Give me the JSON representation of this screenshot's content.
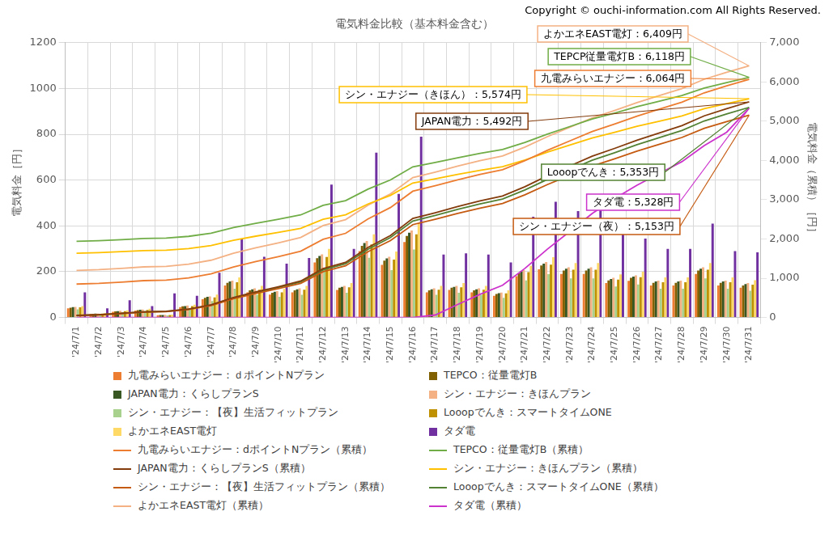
{
  "chart_data": {
    "type": "bar",
    "title": "電気料金比較（基本料金含む）",
    "source": "Copyright © ouchi-information.com All Rights Reserved.",
    "y_label": "電気料金［円］",
    "y2_label": "電気料金（累積）［円］",
    "categories": [
      "'24/7/1",
      "'24/7/2",
      "'24/7/3",
      "'24/7/4",
      "'24/7/5",
      "'24/7/6",
      "'24/7/7",
      "'24/7/8",
      "'24/7/9",
      "'24/7/10",
      "'24/7/11",
      "'24/7/12",
      "'24/7/13",
      "'24/7/14",
      "'24/7/15",
      "'24/7/16",
      "'24/7/17",
      "'24/7/18",
      "'24/7/19",
      "'24/7/20",
      "'24/7/21",
      "'24/7/22",
      "'24/7/23",
      "'24/7/24",
      "'24/7/25",
      "'24/7/26",
      "'24/7/27",
      "'24/7/28",
      "'24/7/29",
      "'24/7/30",
      "'24/7/31"
    ],
    "ylim": [
      0,
      1200
    ],
    "yticks": [
      0,
      200,
      400,
      600,
      800,
      1000,
      1200
    ],
    "y2lim": [
      0,
      7000
    ],
    "y2ticks": [
      0,
      {
        "value": 1000,
        "label": "1,000"
      },
      {
        "value": 2000,
        "label": "2,000"
      },
      {
        "value": 3000,
        "label": "3,000"
      },
      {
        "value": 4000,
        "label": "4,000"
      },
      {
        "value": 5000,
        "label": "5,000"
      },
      {
        "value": 6000,
        "label": "6,000"
      },
      {
        "value": 7000,
        "label": "7,000"
      }
    ],
    "grid": true,
    "legend": "bottom",
    "series": [
      {
        "name": "九電みらいエナジー：ｄポイントNプラン",
        "color": "#ED7D31",
        "values": [
          40,
          15,
          25,
          30,
          10,
          45,
          80,
          140,
          110,
          100,
          110,
          240,
          120,
          290,
          230,
          330,
          110,
          120,
          110,
          95,
          180,
          210,
          190,
          190,
          150,
          160,
          140,
          140,
          190,
          140,
          130
        ]
      },
      {
        "name": "TEPCO：従量電灯B",
        "color": "#806000",
        "values": [
          43,
          16,
          27,
          32,
          11,
          49,
          86,
          151,
          119,
          108,
          119,
          259,
          130,
          313,
          248,
          356,
          119,
          130,
          119,
          103,
          194,
          227,
          205,
          205,
          162,
          173,
          151,
          151,
          205,
          151,
          140
        ]
      },
      {
        "name": "JAPAN電力：くらしプランS",
        "color": "#385723",
        "values": [
          45,
          17,
          28,
          34,
          11,
          50,
          90,
          157,
          123,
          112,
          123,
          269,
          134,
          325,
          258,
          370,
          123,
          134,
          123,
          106,
          202,
          235,
          213,
          213,
          168,
          179,
          157,
          157,
          213,
          157,
          146
        ]
      },
      {
        "name": "シン・エナジー：きほんプラン",
        "color": "#F4B183",
        "values": [
          46,
          17,
          29,
          35,
          12,
          52,
          92,
          161,
          127,
          115,
          127,
          276,
          138,
          334,
          265,
          380,
          127,
          138,
          127,
          109,
          207,
          242,
          219,
          219,
          173,
          184,
          161,
          161,
          219,
          161,
          150
        ]
      },
      {
        "name": "シン・エナジー：【夜】生活フィットプラン",
        "color": "#A9D18E",
        "values": [
          36,
          14,
          23,
          27,
          9,
          41,
          72,
          126,
          99,
          90,
          99,
          216,
          108,
          261,
          207,
          297,
          99,
          108,
          99,
          86,
          162,
          189,
          171,
          171,
          135,
          144,
          126,
          126,
          171,
          126,
          117
        ]
      },
      {
        "name": "Looopでんき：スマートタイムONE",
        "color": "#BF9000",
        "values": [
          44,
          17,
          28,
          33,
          11,
          50,
          88,
          154,
          121,
          110,
          121,
          264,
          132,
          319,
          253,
          363,
          121,
          132,
          121,
          105,
          198,
          231,
          209,
          209,
          165,
          176,
          154,
          154,
          209,
          154,
          143
        ]
      },
      {
        "name": "よかエネEAST電灯",
        "color": "#FFD966",
        "values": [
          50,
          19,
          31,
          38,
          13,
          56,
          100,
          175,
          138,
          125,
          138,
          300,
          150,
          363,
          288,
          413,
          138,
          150,
          138,
          119,
          225,
          263,
          238,
          238,
          188,
          200,
          175,
          175,
          238,
          175,
          163
        ]
      },
      {
        "name": "タダ電",
        "color": "#7030A0",
        "values": [
          110,
          40,
          75,
          50,
          105,
          95,
          195,
          345,
          265,
          235,
          260,
          580,
          300,
          720,
          540,
          790,
          275,
          280,
          275,
          240,
          440,
          505,
          465,
          470,
          385,
          345,
          300,
          300,
          410,
          290,
          285
        ]
      },
      {
        "name": "九電みらいエナジー：dポイントNプラン（累積）",
        "type": "line",
        "axis": "y2",
        "color": "#ED7D31",
        "values": [
          851,
          869,
          901,
          939,
          952,
          1008,
          1110,
          1286,
          1425,
          1551,
          1690,
          1993,
          2144,
          2510,
          2801,
          3217,
          3356,
          3508,
          3647,
          3766,
          3994,
          4259,
          4498,
          4739,
          4928,
          5130,
          5307,
          5483,
          5723,
          5900,
          6064
        ]
      },
      {
        "name": "TEPCO：従量電灯B（累積）",
        "type": "line",
        "axis": "y2",
        "color": "#70AD47",
        "values": [
          1940,
          1956,
          1981,
          2011,
          2021,
          2067,
          2148,
          2289,
          2401,
          2502,
          2613,
          2856,
          2977,
          3270,
          3503,
          3837,
          3948,
          4070,
          4181,
          4277,
          4459,
          4672,
          4864,
          5056,
          5208,
          5369,
          5511,
          5653,
          5845,
          5986,
          6118
        ]
      },
      {
        "name": "JAPAN電力：くらしプランS（累積）",
        "type": "line",
        "axis": "y2",
        "color": "#843C0C",
        "values": [
          53,
          72,
          105,
          145,
          158,
          217,
          323,
          507,
          652,
          784,
          929,
          1244,
          1403,
          1784,
          2087,
          2522,
          2667,
          2825,
          2970,
          3095,
          3332,
          3609,
          3859,
          4109,
          4307,
          4517,
          4702,
          4886,
          5137,
          5321,
          5492
        ]
      },
      {
        "name": "シン・エナジー：きほんプラン（累積）",
        "type": "line",
        "axis": "y2",
        "color": "#FFC000",
        "values": [
          1638,
          1652,
          1676,
          1705,
          1714,
          1757,
          1834,
          1967,
          2072,
          2167,
          2272,
          2501,
          2615,
          2891,
          3111,
          3425,
          3530,
          3644,
          3749,
          3839,
          4011,
          4211,
          4392,
          4573,
          4716,
          4869,
          5002,
          5136,
          5317,
          5450,
          5574
        ]
      },
      {
        "name": "シン・エナジー：【夜】生活フィットプラン（累積）",
        "type": "line",
        "axis": "y2",
        "color": "#C55A11",
        "values": [
          49,
          68,
          99,
          136,
          148,
          204,
          303,
          476,
          612,
          735,
          871,
          1168,
          1316,
          1674,
          1959,
          2366,
          2502,
          2651,
          2787,
          2904,
          3126,
          3386,
          3621,
          3856,
          4041,
          4238,
          4412,
          4585,
          4820,
          4992,
          5153
        ]
      },
      {
        "name": "Looopでんき：スマートタイムONE（累積）",
        "type": "line",
        "axis": "y2",
        "color": "#548235",
        "values": [
          51,
          71,
          103,
          141,
          154,
          212,
          315,
          494,
          635,
          764,
          905,
          1213,
          1367,
          1739,
          2035,
          2458,
          2599,
          2754,
          2895,
          3016,
          3248,
          3517,
          3761,
          4005,
          4198,
          4403,
          4583,
          4763,
          5007,
          5186,
          5353
        ]
      },
      {
        "name": "よかエネEAST電灯（累積）",
        "type": "line",
        "axis": "y2",
        "color": "#F4B183",
        "values": [
          1200,
          1219,
          1251,
          1289,
          1301,
          1358,
          1459,
          1635,
          1774,
          1900,
          2039,
          2342,
          2493,
          2859,
          3149,
          3565,
          3704,
          3855,
          3994,
          4113,
          4341,
          4606,
          4845,
          5085,
          5274,
          5475,
          5652,
          5829,
          6069,
          6245,
          6409
        ]
      },
      {
        "name": "タダ電（累積）",
        "type": "line",
        "axis": "y2",
        "color": "#CC33CC",
        "values": [
          0,
          0,
          0,
          0,
          0,
          0,
          0,
          0,
          0,
          0,
          0,
          0,
          0,
          0,
          0,
          0,
          63,
          330,
          590,
          820,
          1250,
          1740,
          2190,
          2650,
          3030,
          3370,
          3670,
          3970,
          4380,
          4720,
          5328
        ]
      }
    ],
    "annotations": [
      {
        "text": "よかエネEAST電灯：6,409円",
        "series": "よかエネEAST電灯（累積）"
      },
      {
        "text": "TEPCP従量電灯B：6,118円",
        "series": "TEPCO：従量電灯B（累積）"
      },
      {
        "text": "九電みらいエナジー：6,064円",
        "series": "九電みらいエナジー：dポイントNプラン（累積）"
      },
      {
        "text": "シン・エナジー（きほん）：5,574円",
        "series": "シン・エナジー：きほんプラン（累積）"
      },
      {
        "text": "JAPAN電力：5,492円",
        "series": "JAPAN電力：くらしプランS（累積）"
      },
      {
        "text": "Looopでんき：5,353円",
        "series": "Looopでんき：スマートタイムONE（累積）"
      },
      {
        "text": "タダ電：5,328円",
        "series": "タダ電（累積）"
      },
      {
        "text": "シン・エナジー（夜）：5,153円",
        "series": "シン・エナジー：【夜】生活フィットプラン（累積）"
      }
    ]
  }
}
